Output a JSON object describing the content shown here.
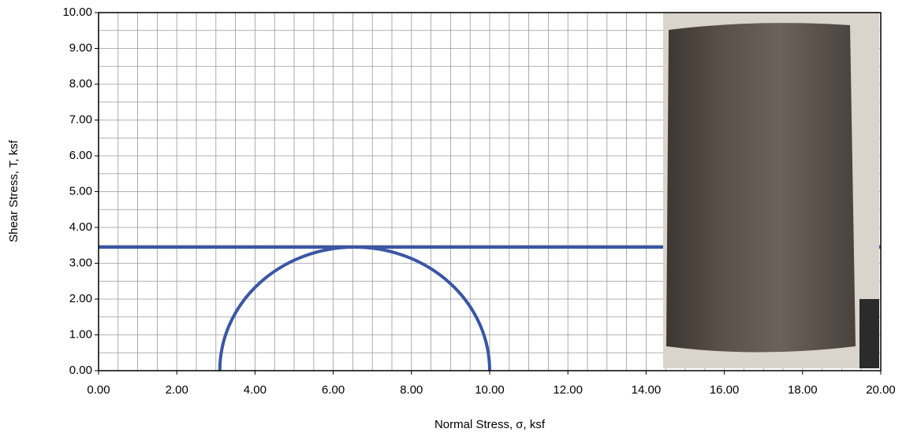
{
  "chart_data": {
    "type": "mohr",
    "x_label": "Normal Stress, σ, ksf",
    "y_label": "Shear Stress, T, ksf",
    "circles": [
      {
        "sigma3": 3.1,
        "sigma1": 10.0
      }
    ],
    "envelope": {
      "tau": 3.45
    },
    "color": "#3a56a5",
    "xlim": [
      0,
      20
    ],
    "ylim": [
      0,
      10
    ],
    "xticks": [
      {
        "value": 0,
        "label": "0.00"
      },
      {
        "value": 2,
        "label": "2.00"
      },
      {
        "value": 4,
        "label": "4.00"
      },
      {
        "value": 6,
        "label": "6.00"
      },
      {
        "value": 8,
        "label": "8.00"
      },
      {
        "value": 10,
        "label": "10.00"
      },
      {
        "value": 12,
        "label": "12.00"
      },
      {
        "value": 14,
        "label": "14.00"
      },
      {
        "value": 16,
        "label": "16.00"
      },
      {
        "value": 18,
        "label": "18.00"
      },
      {
        "value": 20,
        "label": "20.00"
      }
    ],
    "yticks": [
      {
        "value": 0,
        "label": "0.00"
      },
      {
        "value": 1,
        "label": "1.00"
      },
      {
        "value": 2,
        "label": "2.00"
      },
      {
        "value": 3,
        "label": "3.00"
      },
      {
        "value": 4,
        "label": "4.00"
      },
      {
        "value": 5,
        "label": "5.00"
      },
      {
        "value": 6,
        "label": "6.00"
      },
      {
        "value": 7,
        "label": "7.00"
      },
      {
        "value": 8,
        "label": "8.00"
      },
      {
        "value": 9,
        "label": "9.00"
      },
      {
        "value": 10,
        "label": "10.00"
      }
    ],
    "grid": true,
    "minor_grid_step": 0.5
  }
}
